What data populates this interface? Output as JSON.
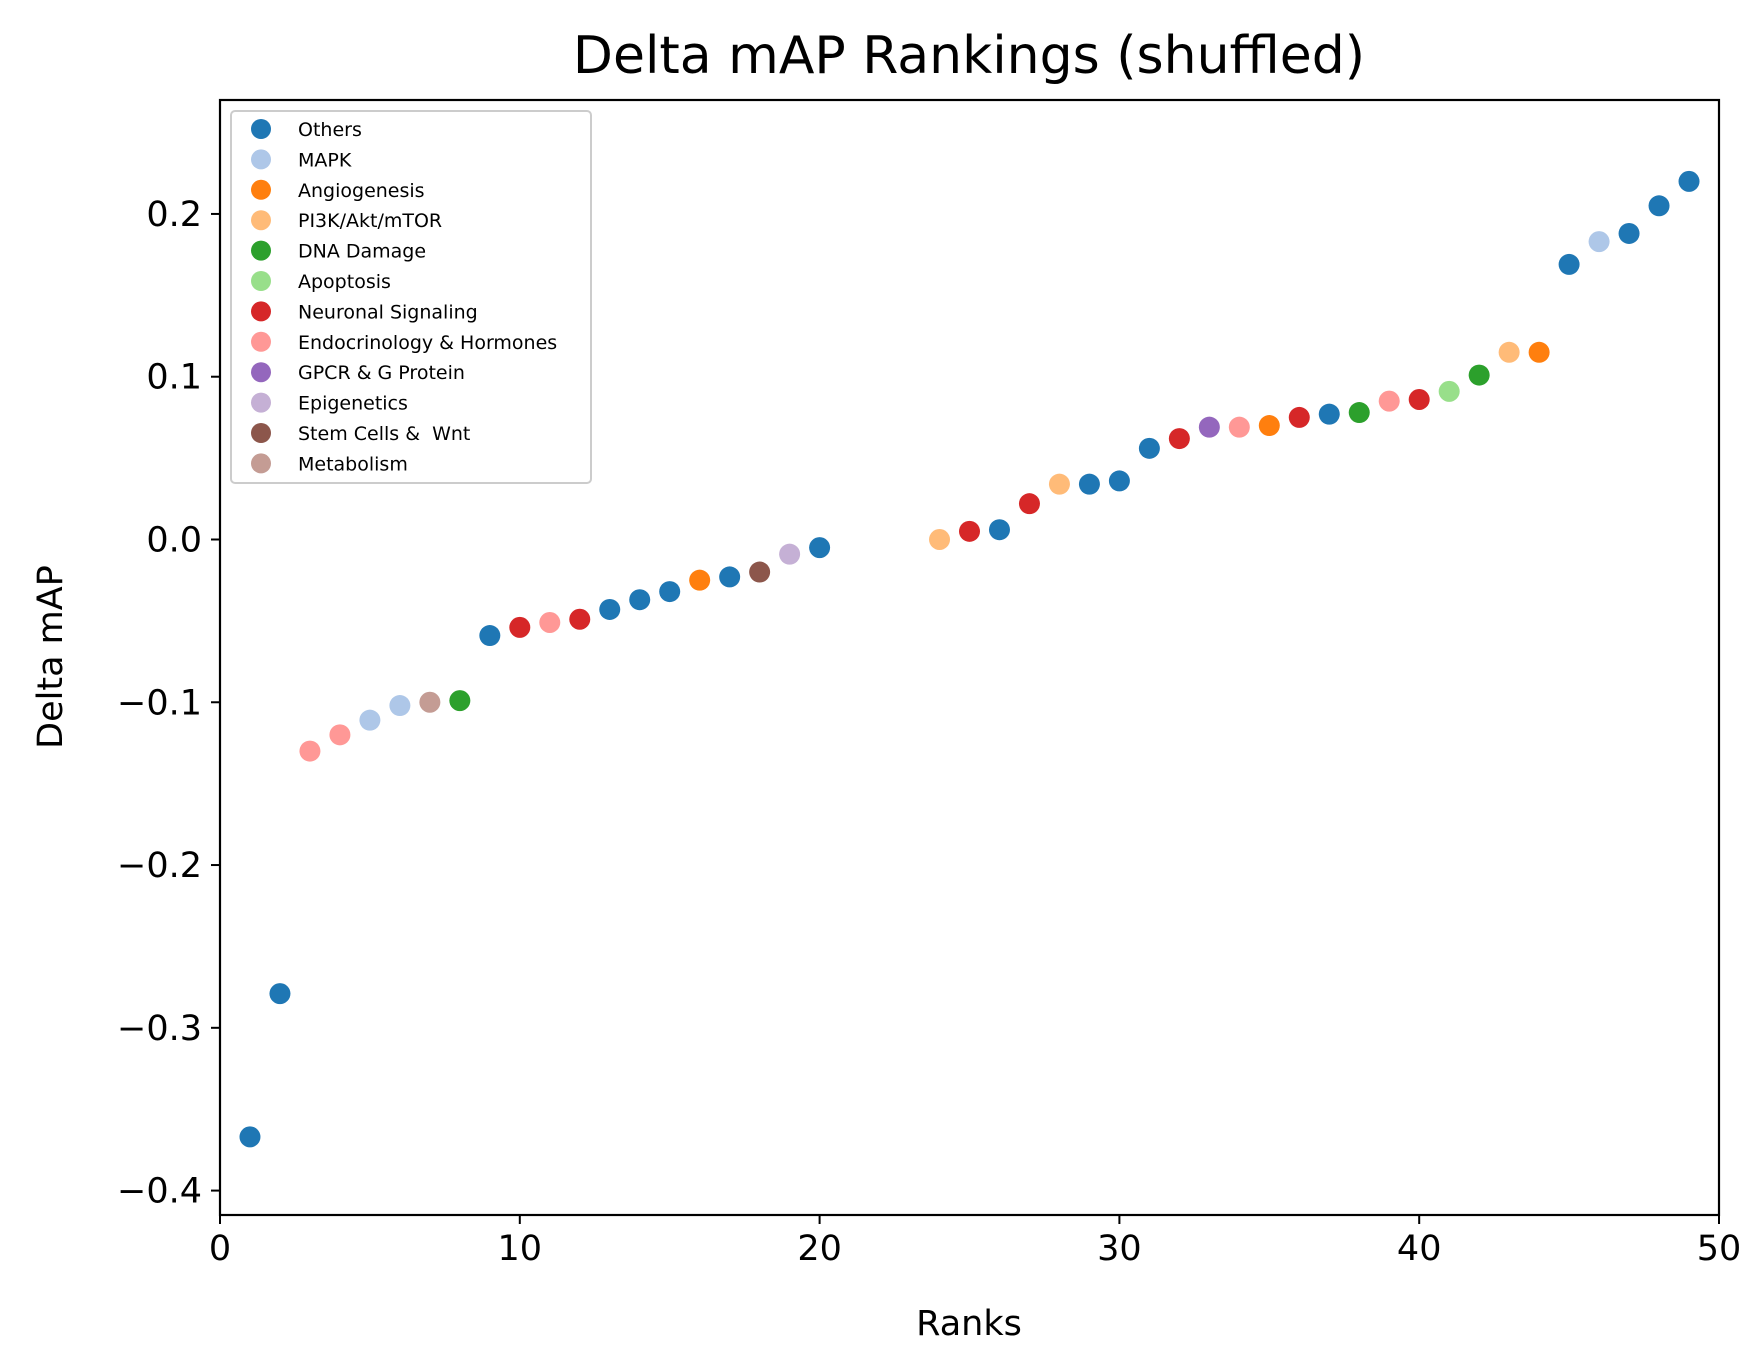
{
  "chart_data": {
    "type": "scatter",
    "title": "Delta mAP Rankings (shuffled)",
    "xlabel": "Ranks",
    "ylabel": "Delta mAP",
    "xlim": [
      0,
      50
    ],
    "ylim": [
      -0.415,
      0.27
    ],
    "xticks": [
      0,
      10,
      20,
      30,
      40,
      50
    ],
    "xtick_labels": [
      "0",
      "10",
      "20",
      "30",
      "40",
      "50"
    ],
    "yticks": [
      -0.4,
      -0.3,
      -0.2,
      -0.1,
      0.0,
      0.1,
      0.2
    ],
    "ytick_labels": [
      "−0.4",
      "−0.3",
      "−0.2",
      "−0.1",
      "0.0",
      "0.1",
      "0.2"
    ],
    "grid": false,
    "legend_position": "top-left",
    "series": [
      {
        "name": "Others",
        "color": "#1f77b4",
        "x": [
          1,
          2,
          9,
          13,
          14,
          15,
          17,
          20,
          26,
          29,
          30,
          31,
          37,
          45,
          47,
          48,
          49
        ],
        "y": [
          -0.367,
          -0.279,
          -0.059,
          -0.043,
          -0.037,
          -0.032,
          -0.023,
          -0.005,
          0.006,
          0.034,
          0.036,
          0.056,
          0.077,
          0.169,
          0.188,
          0.205,
          0.22
        ]
      },
      {
        "name": "MAPK",
        "color": "#aec7e8",
        "x": [
          5,
          6,
          46
        ],
        "y": [
          -0.111,
          -0.102,
          0.183
        ]
      },
      {
        "name": "Angiogenesis",
        "color": "#ff7f0e",
        "x": [
          16,
          35,
          44
        ],
        "y": [
          -0.025,
          0.07,
          0.115
        ]
      },
      {
        "name": "PI3K/Akt/mTOR",
        "color": "#ffbb78",
        "x": [
          24,
          28,
          43
        ],
        "y": [
          0.0,
          0.034,
          0.115
        ]
      },
      {
        "name": "DNA Damage",
        "color": "#2ca02c",
        "x": [
          8,
          38,
          42
        ],
        "y": [
          -0.099,
          0.078,
          0.101
        ]
      },
      {
        "name": "Apoptosis",
        "color": "#98df8a",
        "x": [
          41
        ],
        "y": [
          0.091
        ]
      },
      {
        "name": "Neuronal Signaling",
        "color": "#d62728",
        "x": [
          10,
          12,
          25,
          27,
          32,
          36,
          40
        ],
        "y": [
          -0.054,
          -0.049,
          0.005,
          0.022,
          0.062,
          0.075,
          0.086
        ]
      },
      {
        "name": "Endocrinology & Hormones",
        "color": "#ff9896",
        "x": [
          3,
          4,
          11,
          34,
          39
        ],
        "y": [
          -0.13,
          -0.12,
          -0.051,
          0.069,
          0.085
        ]
      },
      {
        "name": "GPCR & G Protein",
        "color": "#9467bd",
        "x": [
          33
        ],
        "y": [
          0.069
        ]
      },
      {
        "name": "Epigenetics",
        "color": "#c5b0d5",
        "x": [
          19
        ],
        "y": [
          -0.009
        ]
      },
      {
        "name": "Stem Cells &  Wnt",
        "color": "#8c564b",
        "x": [
          18
        ],
        "y": [
          -0.02
        ]
      },
      {
        "name": "Metabolism",
        "color": "#c49c94",
        "x": [
          7
        ],
        "y": [
          -0.1
        ]
      }
    ]
  }
}
